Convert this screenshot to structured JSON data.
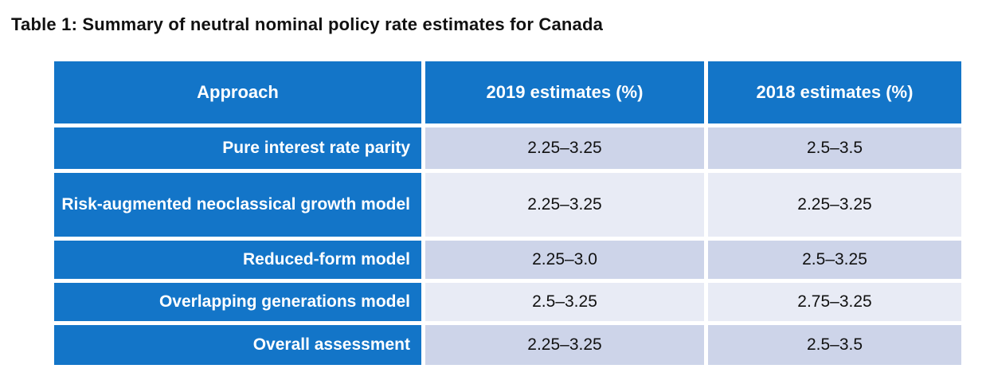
{
  "title": "Table 1: Summary of neutral nominal policy rate estimates for Canada",
  "colors": {
    "header_bg": "#1375C8",
    "row_band_dark": "#CDD4E9",
    "row_band_light": "#E8EBF5",
    "header_text": "#FFFFFF",
    "body_text": "#111111"
  },
  "table": {
    "columns": {
      "approach": "Approach",
      "est2019": "2019 estimates (%)",
      "est2018": "2018 estimates (%)"
    },
    "rows": [
      {
        "approach": "Pure interest rate parity",
        "est2019": "2.25–3.25",
        "est2018": "2.5–3.5"
      },
      {
        "approach": "Risk-augmented neoclassical growth model",
        "est2019": "2.25–3.25",
        "est2018": "2.25–3.25"
      },
      {
        "approach": "Reduced-form model",
        "est2019": "2.25–3.0",
        "est2018": "2.5–3.25"
      },
      {
        "approach": "Overlapping generations model",
        "est2019": "2.5–3.25",
        "est2018": "2.75–3.25"
      },
      {
        "approach": "Overall assessment",
        "est2019": "2.25–3.25",
        "est2018": "2.5–3.5"
      }
    ]
  }
}
